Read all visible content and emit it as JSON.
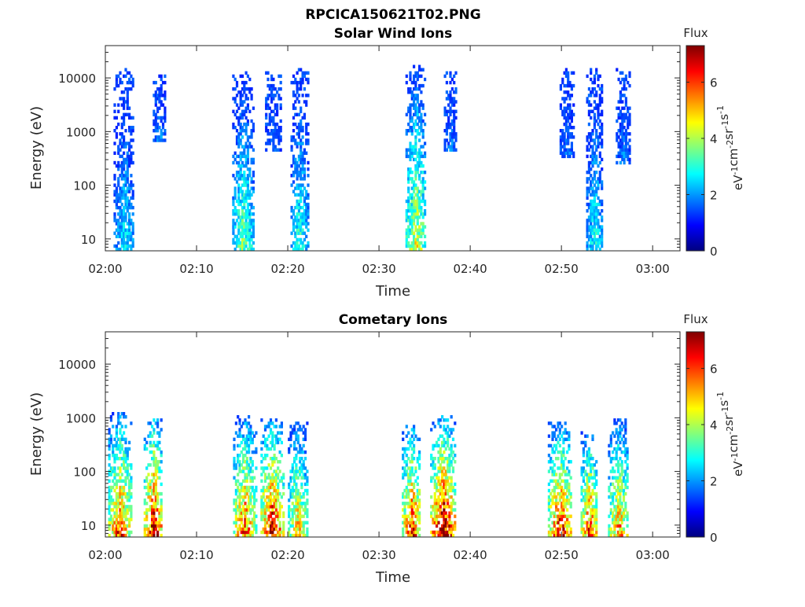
{
  "figure_title": "RPCICA150621T02.PNG",
  "colors": {
    "axis": "#262626",
    "background": "#ffffff",
    "colormap": [
      "#00007f",
      "#0000ff",
      "#007fff",
      "#00ffff",
      "#7fff7f",
      "#ffff00",
      "#ff7f00",
      "#ff0000",
      "#7f0000"
    ]
  },
  "chart_data": [
    {
      "type": "heatmap",
      "title": "Solar Wind Ions",
      "xlabel": "Time",
      "ylabel": "Energy (eV)",
      "y_scale": "log",
      "ylim": [
        6,
        40000
      ],
      "xlim": [
        "02:00",
        "03:03"
      ],
      "x_ticks": [
        "02:00",
        "02:10",
        "02:20",
        "02:30",
        "02:40",
        "02:50",
        "03:00"
      ],
      "y_ticks": [
        "10",
        "100",
        "1000",
        "10000"
      ],
      "colorbar": {
        "title": "Flux",
        "label_parts": [
          "eV",
          "-1",
          "cm",
          "-2",
          "sr",
          "-1",
          "s",
          "-1"
        ],
        "range": [
          0,
          7.3
        ],
        "ticks": [
          "0",
          "2",
          "4",
          "6"
        ]
      },
      "bursts": [
        {
          "t": 2.0,
          "w": 2.2,
          "e_low": 6,
          "e_high": 15000,
          "flux_peak": 2.7
        },
        {
          "t": 5.9,
          "w": 1.4,
          "e_low": 600,
          "e_high": 11000,
          "flux_peak": 2.2
        },
        {
          "t": 15.0,
          "w": 2.2,
          "e_low": 6,
          "e_high": 12000,
          "flux_peak": 3.6
        },
        {
          "t": 18.3,
          "w": 1.6,
          "e_low": 400,
          "e_high": 12000,
          "flux_peak": 1.9
        },
        {
          "t": 21.2,
          "w": 1.8,
          "e_low": 6,
          "e_high": 14000,
          "flux_peak": 3.2
        },
        {
          "t": 34.0,
          "w": 2.2,
          "e_low": 6,
          "e_high": 16000,
          "flux_peak": 4.4
        },
        {
          "t": 37.8,
          "w": 1.4,
          "e_low": 400,
          "e_high": 12000,
          "flux_peak": 2.0
        },
        {
          "t": 50.6,
          "w": 1.6,
          "e_low": 300,
          "e_high": 15000,
          "flux_peak": 1.9
        },
        {
          "t": 53.6,
          "w": 1.8,
          "e_low": 6,
          "e_high": 14000,
          "flux_peak": 3.0
        },
        {
          "t": 56.7,
          "w": 1.5,
          "e_low": 250,
          "e_high": 14000,
          "flux_peak": 2.0
        }
      ]
    },
    {
      "type": "heatmap",
      "title": "Cometary Ions",
      "xlabel": "Time",
      "ylabel": "Energy (eV)",
      "y_scale": "log",
      "ylim": [
        6,
        40000
      ],
      "xlim": [
        "02:00",
        "03:03"
      ],
      "x_ticks": [
        "02:00",
        "02:10",
        "02:20",
        "02:30",
        "02:40",
        "02:50",
        "03:00"
      ],
      "y_ticks": [
        "10",
        "100",
        "1000",
        "10000"
      ],
      "colorbar": {
        "title": "Flux",
        "label_parts": [
          "eV",
          "-1",
          "cm",
          "-2",
          "sr",
          "-1",
          "s",
          "-1"
        ],
        "range": [
          0,
          7.3
        ],
        "ticks": [
          "0",
          "2",
          "4",
          "6"
        ]
      },
      "bursts": [
        {
          "t": 1.5,
          "w": 2.4,
          "e_low": 6,
          "e_high": 1200,
          "flux_peak": 6.2
        },
        {
          "t": 5.2,
          "w": 2.0,
          "e_low": 6,
          "e_high": 900,
          "flux_peak": 7.0
        },
        {
          "t": 15.2,
          "w": 2.4,
          "e_low": 6,
          "e_high": 1000,
          "flux_peak": 6.0
        },
        {
          "t": 18.2,
          "w": 2.4,
          "e_low": 6,
          "e_high": 900,
          "flux_peak": 6.8
        },
        {
          "t": 21.0,
          "w": 2.0,
          "e_low": 6,
          "e_high": 800,
          "flux_peak": 5.2
        },
        {
          "t": 33.5,
          "w": 2.0,
          "e_low": 6,
          "e_high": 700,
          "flux_peak": 6.5
        },
        {
          "t": 37.0,
          "w": 2.8,
          "e_low": 6,
          "e_high": 1000,
          "flux_peak": 7.2
        },
        {
          "t": 49.8,
          "w": 2.6,
          "e_low": 6,
          "e_high": 800,
          "flux_peak": 6.5
        },
        {
          "t": 53.0,
          "w": 1.8,
          "e_low": 6,
          "e_high": 500,
          "flux_peak": 6.2
        },
        {
          "t": 56.2,
          "w": 2.2,
          "e_low": 6,
          "e_high": 900,
          "flux_peak": 5.5
        }
      ]
    }
  ]
}
